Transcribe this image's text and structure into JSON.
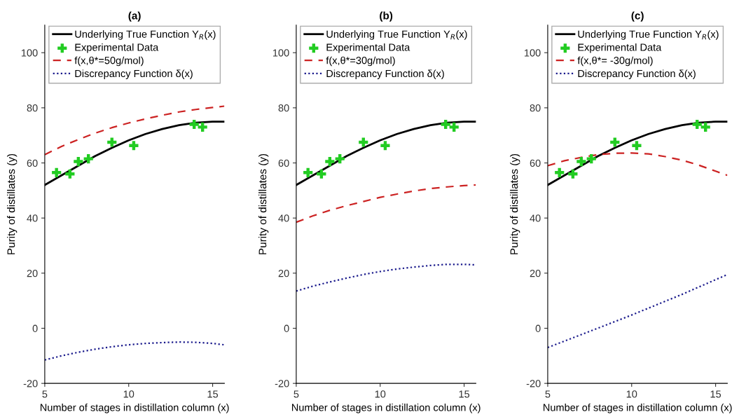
{
  "chart_data": [
    {
      "type": "line",
      "title": "(a)",
      "xlabel": "Number of stages in distillation column (x)",
      "ylabel": "Purity of distillates (y)",
      "xlim": [
        5,
        15.7
      ],
      "ylim": [
        -20,
        110
      ],
      "xticks": [
        5,
        10,
        15
      ],
      "yticks": [
        -20,
        0,
        20,
        40,
        60,
        80,
        100
      ],
      "legend": "top",
      "grid": false,
      "series": [
        {
          "name": "Underlying True Function Y$_{R}$(x)",
          "type": "line",
          "color": "#000000",
          "line_style": "solid",
          "marker": "none",
          "x": [
            5,
            6,
            7,
            8,
            9,
            10,
            11,
            12,
            13,
            14,
            15,
            15.7
          ],
          "values": [
            52,
            55.5,
            59,
            62.5,
            65.5,
            68.2,
            70.5,
            72.3,
            73.7,
            74.6,
            75,
            75
          ]
        },
        {
          "name": "Experimental Data",
          "type": "scatter",
          "color": "#22cc22",
          "marker": "cross",
          "x": [
            5.7,
            6.5,
            7.0,
            7.6,
            9.0,
            10.3,
            13.9,
            14.4
          ],
          "values": [
            56.5,
            56,
            60.5,
            61.5,
            67.5,
            66.3,
            74,
            73
          ]
        },
        {
          "name": "f(x,θ*=50g/mol)",
          "type": "line",
          "color": "#cc2222",
          "line_style": "dashed",
          "marker": "none",
          "x": [
            5,
            6,
            7,
            8,
            9,
            10,
            11,
            12,
            13,
            14,
            15,
            15.7
          ],
          "values": [
            63,
            66,
            68.5,
            70.8,
            72.8,
            74.5,
            76,
            77.3,
            78.5,
            79.4,
            80.1,
            80.6
          ]
        },
        {
          "name": "Discrepancy Function δ(x)",
          "type": "line",
          "color": "#1a1a8c",
          "line_style": "dotted",
          "marker": "none",
          "x": [
            5,
            6,
            7,
            8,
            9,
            10,
            11,
            12,
            13,
            14,
            15,
            15.7
          ],
          "values": [
            -11.5,
            -10,
            -8.7,
            -7.6,
            -6.7,
            -6,
            -5.5,
            -5.2,
            -5,
            -5.1,
            -5.5,
            -6
          ]
        }
      ]
    },
    {
      "type": "line",
      "title": "(b)",
      "xlabel": "Number of stages in distillation column (x)",
      "ylabel": "Purity of distillates (y)",
      "xlim": [
        5,
        15.7
      ],
      "ylim": [
        -20,
        110
      ],
      "xticks": [
        5,
        10,
        15
      ],
      "yticks": [
        -20,
        0,
        20,
        40,
        60,
        80,
        100
      ],
      "legend": "top",
      "grid": false,
      "series": [
        {
          "name": "Underlying True Function Y$_{R}$(x)",
          "type": "line",
          "color": "#000000",
          "line_style": "solid",
          "marker": "none",
          "x": [
            5,
            6,
            7,
            8,
            9,
            10,
            11,
            12,
            13,
            14,
            15,
            15.7
          ],
          "values": [
            52,
            55.5,
            59,
            62.5,
            65.5,
            68.2,
            70.5,
            72.3,
            73.7,
            74.6,
            75,
            75
          ]
        },
        {
          "name": "Experimental Data",
          "type": "scatter",
          "color": "#22cc22",
          "marker": "cross",
          "x": [
            5.7,
            6.5,
            7.0,
            7.6,
            9.0,
            10.3,
            13.9,
            14.4
          ],
          "values": [
            56.5,
            56,
            60.5,
            61.5,
            67.5,
            66.3,
            74,
            73
          ]
        },
        {
          "name": "f(x,θ*=30g/mol)",
          "type": "line",
          "color": "#cc2222",
          "line_style": "dashed",
          "marker": "none",
          "x": [
            5,
            6,
            7,
            8,
            9,
            10,
            11,
            12,
            13,
            14,
            15,
            15.7
          ],
          "values": [
            38.5,
            40.8,
            42.8,
            44.5,
            46,
            47.5,
            48.7,
            49.8,
            50.7,
            51.3,
            51.8,
            52
          ]
        },
        {
          "name": "Discrepancy Function δ(x)",
          "type": "line",
          "color": "#1a1a8c",
          "line_style": "dotted",
          "marker": "none",
          "x": [
            5,
            6,
            7,
            8,
            9,
            10,
            11,
            12,
            13,
            14,
            15,
            15.7
          ],
          "values": [
            13.5,
            15.3,
            16.8,
            18.2,
            19.5,
            20.6,
            21.5,
            22.2,
            22.8,
            23.2,
            23.2,
            23
          ]
        }
      ]
    },
    {
      "type": "line",
      "title": "(c)",
      "xlabel": "Number of stages in distillation column (x)",
      "ylabel": "Purity of distillates (y)",
      "xlim": [
        5,
        15.7
      ],
      "ylim": [
        -20,
        110
      ],
      "xticks": [
        5,
        10,
        15
      ],
      "yticks": [
        -20,
        0,
        20,
        40,
        60,
        80,
        100
      ],
      "legend": "top",
      "grid": false,
      "series": [
        {
          "name": "Underlying True Function Y$_{R}$(x)",
          "type": "line",
          "color": "#000000",
          "line_style": "solid",
          "marker": "none",
          "x": [
            5,
            6,
            7,
            8,
            9,
            10,
            11,
            12,
            13,
            14,
            15,
            15.7
          ],
          "values": [
            52,
            55.5,
            59,
            62.5,
            65.5,
            68.2,
            70.5,
            72.3,
            73.7,
            74.6,
            75,
            75
          ]
        },
        {
          "name": "Experimental Data",
          "type": "scatter",
          "color": "#22cc22",
          "marker": "cross",
          "x": [
            5.7,
            6.5,
            7.0,
            7.6,
            9.0,
            10.3,
            13.9,
            14.4
          ],
          "values": [
            56.5,
            56,
            60.5,
            61.5,
            67.5,
            66.3,
            74,
            73
          ]
        },
        {
          "name": "f(x,θ*= -30g/mol)",
          "type": "line",
          "color": "#cc2222",
          "line_style": "dashed",
          "marker": "none",
          "x": [
            5,
            6,
            7,
            8,
            9,
            10,
            11,
            12,
            13,
            14,
            15,
            15.7
          ],
          "values": [
            59,
            60.8,
            62,
            63,
            63.5,
            63.6,
            63.3,
            62.3,
            61,
            59.2,
            57,
            55.5
          ]
        },
        {
          "name": "Discrepancy Function δ(x)",
          "type": "line",
          "color": "#1a1a8c",
          "line_style": "dotted",
          "marker": "none",
          "x": [
            5,
            7,
            10,
            13,
            15.7
          ],
          "values": [
            -7,
            -2.3,
            4.8,
            12.3,
            19.5
          ]
        }
      ]
    }
  ]
}
